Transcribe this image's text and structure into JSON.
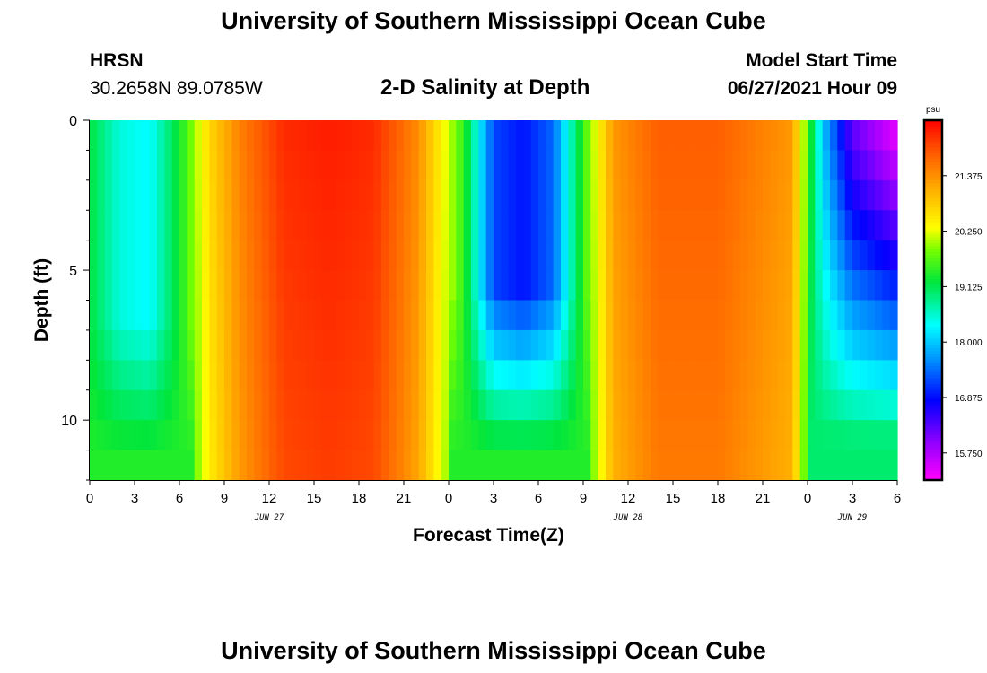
{
  "page": {
    "title_top": "University of Southern Mississippi Ocean Cube",
    "title_bottom": "University of Southern Mississippi Ocean Cube",
    "station": "HRSN",
    "coords": "30.2658N  89.0785W",
    "plot_title": "2-D Salinity at Depth",
    "model_start_label": "Model Start Time",
    "model_start_value": "06/27/2021 Hour 09"
  },
  "chart_data": {
    "type": "heatmap",
    "title": "2-D Salinity at Depth",
    "xlabel": "Forecast Time(Z)",
    "ylabel": "Depth (ft)",
    "x_range_hours": [
      0,
      54
    ],
    "y_range_ft": [
      0,
      12
    ],
    "x_ticks": [
      {
        "h": 0,
        "label": "0"
      },
      {
        "h": 3,
        "label": "3"
      },
      {
        "h": 6,
        "label": "6"
      },
      {
        "h": 9,
        "label": "9"
      },
      {
        "h": 12,
        "label": "12"
      },
      {
        "h": 15,
        "label": "15"
      },
      {
        "h": 18,
        "label": "18"
      },
      {
        "h": 21,
        "label": "21"
      },
      {
        "h": 24,
        "label": "0"
      },
      {
        "h": 27,
        "label": "3"
      },
      {
        "h": 30,
        "label": "6"
      },
      {
        "h": 33,
        "label": "9"
      },
      {
        "h": 36,
        "label": "12"
      },
      {
        "h": 39,
        "label": "15"
      },
      {
        "h": 42,
        "label": "18"
      },
      {
        "h": 45,
        "label": "21"
      },
      {
        "h": 48,
        "label": "0"
      },
      {
        "h": 51,
        "label": "3"
      },
      {
        "h": 54,
        "label": "6"
      }
    ],
    "date_labels": [
      {
        "h": 12,
        "label": "JUN 27"
      },
      {
        "h": 36,
        "label": "JUN 28"
      },
      {
        "h": 51,
        "label": "JUN 29"
      }
    ],
    "y_major_ticks": [
      0,
      5,
      10
    ],
    "y_tick_labels": [
      "0",
      "5",
      "10"
    ],
    "y_minor_ticks": [
      1,
      2,
      3,
      4,
      6,
      7,
      8,
      9,
      11,
      12
    ],
    "colorbar": {
      "unit": "psu",
      "min": 15.2,
      "max": 22.5,
      "ticks": [
        21.375,
        20.25,
        19.125,
        18.0,
        16.875,
        15.75
      ],
      "tick_labels": [
        "21.375",
        "20.250",
        "19.125",
        "18.000",
        "16.875",
        "15.750"
      ]
    },
    "description_of_field": "Salinity (psu) by forecast hour and depth. Surface values: ~18.3 near hour 3-5, rising to ~22.3 at hours 13-19, falling to ~16.8 at hours 27-31 (minimum at depth 0-6 ft), ~21.7 at hours 36-46, dropping to ~15.3 at hour 54 near surface.",
    "time_series_surface": [
      {
        "h": 0,
        "v": 19.2
      },
      {
        "h": 2,
        "v": 18.5
      },
      {
        "h": 4,
        "v": 18.3
      },
      {
        "h": 6,
        "v": 19.3
      },
      {
        "h": 8,
        "v": 20.7
      },
      {
        "h": 10,
        "v": 21.5
      },
      {
        "h": 13,
        "v": 22.2
      },
      {
        "h": 16,
        "v": 22.3
      },
      {
        "h": 19,
        "v": 22.2
      },
      {
        "h": 22,
        "v": 21.4
      },
      {
        "h": 25,
        "v": 19.5
      },
      {
        "h": 27,
        "v": 17.2
      },
      {
        "h": 29,
        "v": 16.9
      },
      {
        "h": 31,
        "v": 17.4
      },
      {
        "h": 33,
        "v": 19.5
      },
      {
        "h": 35,
        "v": 21.3
      },
      {
        "h": 38,
        "v": 21.8
      },
      {
        "h": 42,
        "v": 21.8
      },
      {
        "h": 47,
        "v": 21.3
      },
      {
        "h": 49,
        "v": 18.0
      },
      {
        "h": 51,
        "v": 16.2
      },
      {
        "h": 54,
        "v": 15.3
      }
    ]
  }
}
